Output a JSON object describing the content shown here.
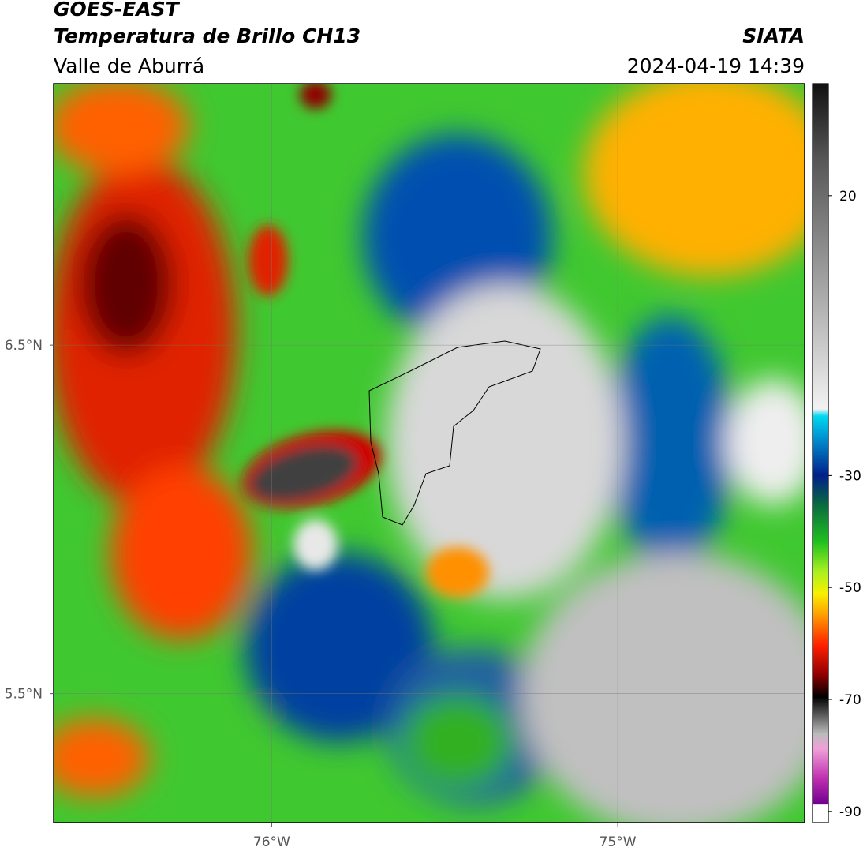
{
  "header": {
    "title": "GOES-EAST",
    "subtitle": "Temperatura de Brillo CH13",
    "region": "Valle de Aburrá",
    "source": "SIATA",
    "datetime": "2024-04-19 14:39"
  },
  "map": {
    "lon_lim": [
      -76.63,
      -74.46
    ],
    "lat_lim": [
      5.13,
      7.25
    ],
    "lon_ticks": [
      {
        "value": -76,
        "label": "76°W"
      },
      {
        "value": -75,
        "label": "75°W"
      }
    ],
    "lat_ticks": [
      {
        "value": 6.5,
        "label": "6.5°N"
      },
      {
        "value": 5.5,
        "label": "5.5°N"
      }
    ],
    "grid": true,
    "colorbar": {
      "lim": [
        -92,
        40
      ],
      "ticks": [
        20,
        -30,
        -50,
        -70,
        -90
      ]
    }
  }
}
